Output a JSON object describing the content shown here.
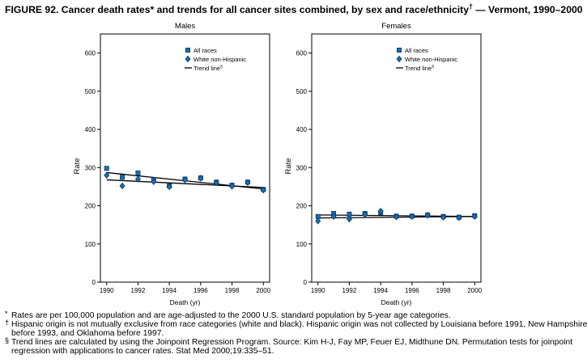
{
  "figure": {
    "title": "FIGURE 92. Cancer death rates* and trends for all cancer sites combined, by sex and race/ethnicity",
    "title_mark": "†",
    "title_suffix": " — Vermont, 1990–2000"
  },
  "chart_data": [
    {
      "type": "scatter",
      "title": "Males",
      "xlabel": "Death (yr)",
      "ylabel": "Rate",
      "xlim": [
        1989.6,
        2000.4
      ],
      "ylim": [
        0,
        650
      ],
      "yticks": [
        0,
        100,
        200,
        300,
        400,
        500,
        600
      ],
      "xticks": [
        1990,
        1992,
        1994,
        1996,
        1998,
        2000
      ],
      "grid": false,
      "legend_position": "top-right",
      "x": [
        1990,
        1991,
        1992,
        1993,
        1994,
        1995,
        1996,
        1997,
        1998,
        1999,
        2000
      ],
      "series": [
        {
          "name": "All races",
          "marker": "square",
          "values": [
            298,
            275,
            286,
            268,
            252,
            270,
            273,
            262,
            254,
            262,
            243
          ]
        },
        {
          "name": "White non-Hispanic",
          "marker": "diamond",
          "values": [
            280,
            252,
            270,
            263,
            250,
            268,
            272,
            260,
            251,
            261,
            241
          ]
        }
      ],
      "trend_lines": [
        {
          "name": "Trend line",
          "mark": "§",
          "from": [
            1990,
            287
          ],
          "to": [
            2000,
            244
          ]
        },
        {
          "from": [
            1990,
            268
          ],
          "to": [
            2000,
            248
          ]
        }
      ]
    },
    {
      "type": "scatter",
      "title": "Females",
      "xlabel": "Death (yr)",
      "ylabel": "Rate",
      "xlim": [
        1989.6,
        2000.4
      ],
      "ylim": [
        0,
        650
      ],
      "yticks": [
        0,
        100,
        200,
        300,
        400,
        500,
        600
      ],
      "xticks": [
        1990,
        1992,
        1994,
        1996,
        1998,
        2000
      ],
      "grid": false,
      "legend_position": "top-right",
      "x": [
        1990,
        1991,
        1992,
        1993,
        1994,
        1995,
        1996,
        1997,
        1998,
        1999,
        2000
      ],
      "series": [
        {
          "name": "All races",
          "marker": "square",
          "values": [
            172,
            180,
            178,
            180,
            182,
            173,
            173,
            176,
            172,
            170,
            174
          ]
        },
        {
          "name": "White non-Hispanic",
          "marker": "diamond",
          "values": [
            160,
            172,
            165,
            177,
            186,
            171,
            172,
            175,
            170,
            169,
            172
          ]
        }
      ],
      "trend_lines": [
        {
          "name": "Trend line",
          "mark": "§",
          "from": [
            1990,
            176
          ],
          "to": [
            2000,
            172
          ]
        },
        {
          "from": [
            1990,
            168
          ],
          "to": [
            2000,
            172
          ]
        }
      ]
    }
  ],
  "footnotes": [
    {
      "mark": "*",
      "text": "Rates are per 100,000 population and are age-adjusted to the 2000 U.S. standard population by 5-year age categories."
    },
    {
      "mark": "†",
      "text": "Hispanic origin is not mutually exclusive from race categories (white and black). Hispanic origin was not collected by Louisiana before 1991, New Hampshire"
    },
    {
      "mark": "",
      "text": "before 1993, and Oklahoma before 1997."
    },
    {
      "mark": "§",
      "text": "Trend lines are calculated by using the Joinpoint Regression Program. Source: Kim H-J, Fay MP, Feuer EJ, Midthune DN. Permutation tests for joinpoint"
    },
    {
      "mark": "",
      "text": "regression with applications to cancer rates. Stat Med 2000;19:335–51."
    }
  ],
  "colors": {
    "marker_fill": "#1a6fb5",
    "marker_stroke": "#0b3a66",
    "axis": "#000000",
    "trend": "#000000"
  }
}
